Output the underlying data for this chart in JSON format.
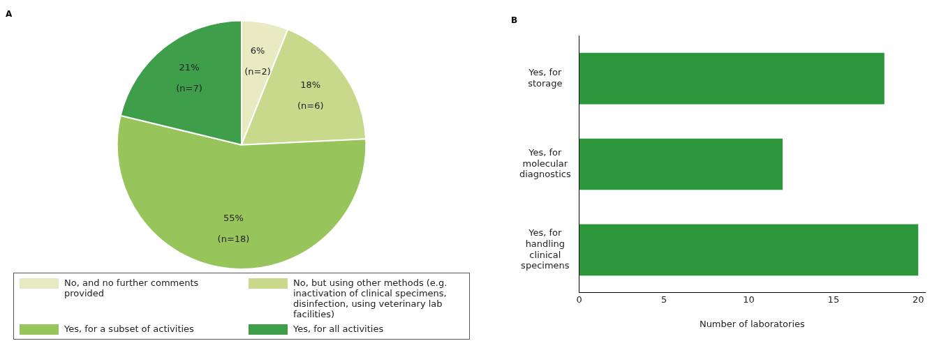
{
  "chart_data": [
    {
      "type": "pie",
      "title": "A",
      "categories": [
        "No, and no further comments provided",
        "No, but using other methods (e.g. inactivation of clinical specimens, disinfection, using veterinary lab facilities)",
        "Yes, for a subset of activities",
        "Yes, for all activities"
      ],
      "values": [
        2,
        6,
        18,
        7
      ],
      "value_labels": [
        "6% (n=2)",
        "18% (n=6)",
        "55% (n=18)",
        "21% (n=7)"
      ],
      "colors": [
        "#e8eac2",
        "#c9d98b",
        "#98c55b",
        "#3f9e4a"
      ],
      "legend": "bottom"
    },
    {
      "type": "bar",
      "title": "B",
      "orientation": "horizontal",
      "categories": [
        "Yes, for storage",
        "Yes, for molecular diagnostics",
        "Yes, for handling clinical specimens"
      ],
      "values": [
        18,
        12,
        20
      ],
      "color": "#2b963a",
      "xlim": [
        0,
        20.4
      ],
      "xticks": [
        0,
        5,
        10,
        15,
        20
      ],
      "xlabel": "Number of laboratories",
      "grid": false,
      "legend": false
    }
  ]
}
